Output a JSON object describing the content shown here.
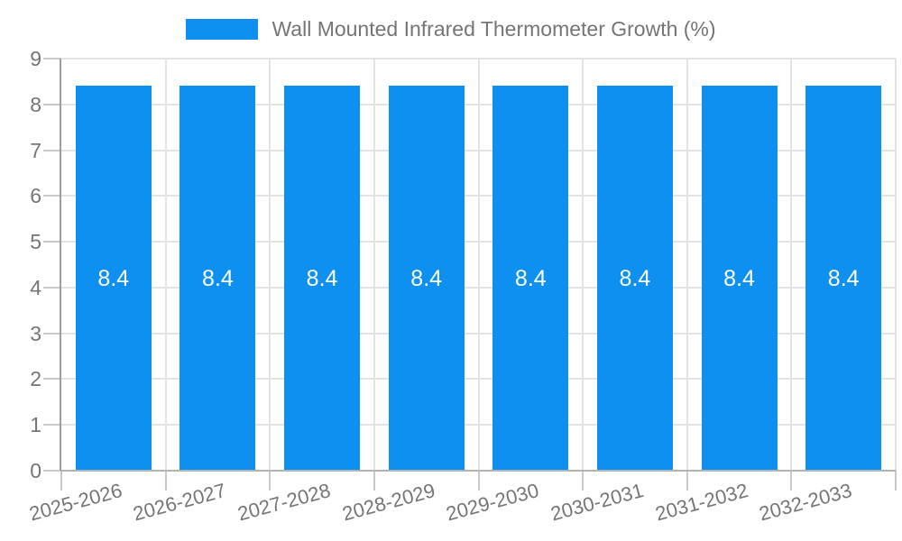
{
  "chart_data": {
    "type": "bar",
    "title": "Wall Mounted Infrared Thermometer Growth (%)",
    "categories": [
      "2025-2026",
      "2026-2027",
      "2027-2028",
      "2028-2029",
      "2029-2030",
      "2030-2031",
      "2031-2032",
      "2032-2033"
    ],
    "values": [
      8.4,
      8.4,
      8.4,
      8.4,
      8.4,
      8.4,
      8.4,
      8.4
    ],
    "bar_labels": [
      "8.4",
      "8.4",
      "8.4",
      "8.4",
      "8.4",
      "8.4",
      "8.4",
      "8.4"
    ],
    "xlabel": "",
    "ylabel": "",
    "ylim": [
      0,
      9
    ],
    "yticks": [
      0,
      1,
      2,
      3,
      4,
      5,
      6,
      7,
      8,
      9
    ],
    "grid": true,
    "legend_position": "top"
  },
  "colors": {
    "bar": "#0e90f1",
    "bar_value_text": "#ffffff",
    "axis_text": "#757575",
    "legend_text": "#757575",
    "gridline": "#e3e3e3",
    "tick": "#c9c9c9",
    "y_axis_line": "#9e9e9e",
    "x_axis_line": "#b3b3b3",
    "background": "#ffffff"
  }
}
